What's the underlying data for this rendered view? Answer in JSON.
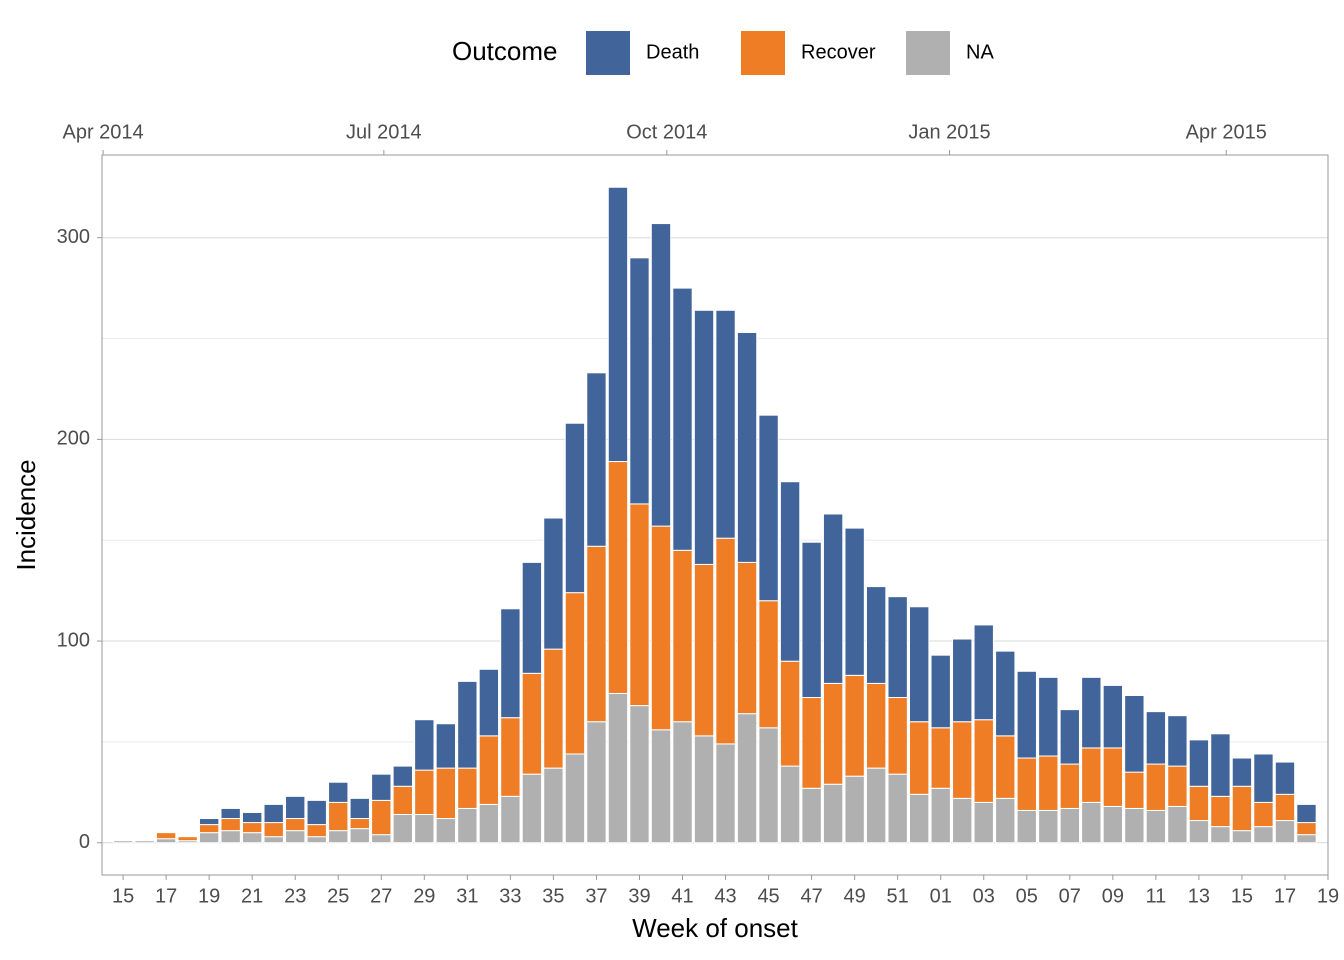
{
  "chart_data": {
    "type": "stacked_bar",
    "xlabel": "Week of onset",
    "ylabel": "Incidence",
    "legend_title": "Outcome",
    "legend_position": "top",
    "categories": [
      "15",
      null,
      "17",
      null,
      "19",
      null,
      "21",
      null,
      "23",
      null,
      "25",
      null,
      "27",
      null,
      "29",
      null,
      "31",
      null,
      "33",
      null,
      "35",
      null,
      "37",
      null,
      "39",
      null,
      "41",
      null,
      "43",
      null,
      "45",
      null,
      "47",
      null,
      "49",
      null,
      "51",
      null,
      "01",
      null,
      "03",
      null,
      "05",
      null,
      "07",
      null,
      "09",
      null,
      "11",
      null,
      "13",
      null,
      "15",
      null,
      "17",
      null,
      "19"
    ],
    "series": [
      {
        "name": "Death",
        "color": "#41649a",
        "values": [
          0,
          0,
          0,
          0,
          3,
          5,
          5,
          9,
          11,
          12,
          10,
          10,
          13,
          10,
          25,
          22,
          43,
          33,
          54,
          55,
          65,
          84,
          86,
          136,
          122,
          150,
          130,
          126,
          113,
          114,
          92,
          89,
          77,
          84,
          73,
          48,
          50,
          57,
          36,
          41,
          47,
          42,
          43,
          39,
          27,
          35,
          31,
          38,
          26,
          25,
          23,
          31,
          14,
          24,
          16,
          9,
          null
        ]
      },
      {
        "name": "Recover",
        "color": "#ee7d26",
        "values": [
          0,
          0,
          3,
          2,
          4,
          6,
          5,
          7,
          6,
          6,
          14,
          5,
          17,
          14,
          22,
          25,
          20,
          34,
          39,
          50,
          59,
          80,
          87,
          115,
          100,
          101,
          85,
          85,
          102,
          75,
          63,
          52,
          45,
          50,
          50,
          42,
          38,
          36,
          30,
          38,
          41,
          31,
          26,
          27,
          22,
          27,
          29,
          18,
          23,
          20,
          17,
          15,
          22,
          12,
          13,
          6,
          null
        ]
      },
      {
        "name": "NA",
        "color": "#b0b0b0",
        "values": [
          1,
          1,
          2,
          1,
          5,
          6,
          5,
          3,
          6,
          3,
          6,
          7,
          4,
          14,
          14,
          12,
          17,
          19,
          23,
          34,
          37,
          44,
          60,
          74,
          68,
          56,
          60,
          53,
          49,
          64,
          57,
          38,
          27,
          29,
          33,
          37,
          34,
          24,
          27,
          22,
          20,
          22,
          16,
          16,
          17,
          20,
          18,
          17,
          16,
          18,
          11,
          8,
          6,
          8,
          11,
          4,
          null
        ]
      }
    ],
    "xlim": [
      -0.98,
      56
    ],
    "x2ticks": [
      {
        "value": -0.93,
        "label": "Apr 2014"
      },
      {
        "value": 12.12,
        "label": "Jul 2014"
      },
      {
        "value": 25.27,
        "label": "Oct 2014"
      },
      {
        "value": 38.41,
        "label": "Jan 2015"
      },
      {
        "value": 51.27,
        "label": "Apr 2015"
      }
    ],
    "ylim": [
      -16,
      341
    ],
    "yticks": [
      0,
      100,
      200,
      300
    ],
    "minor_grid_yticks": [
      50,
      150,
      250
    ],
    "grid": true
  }
}
